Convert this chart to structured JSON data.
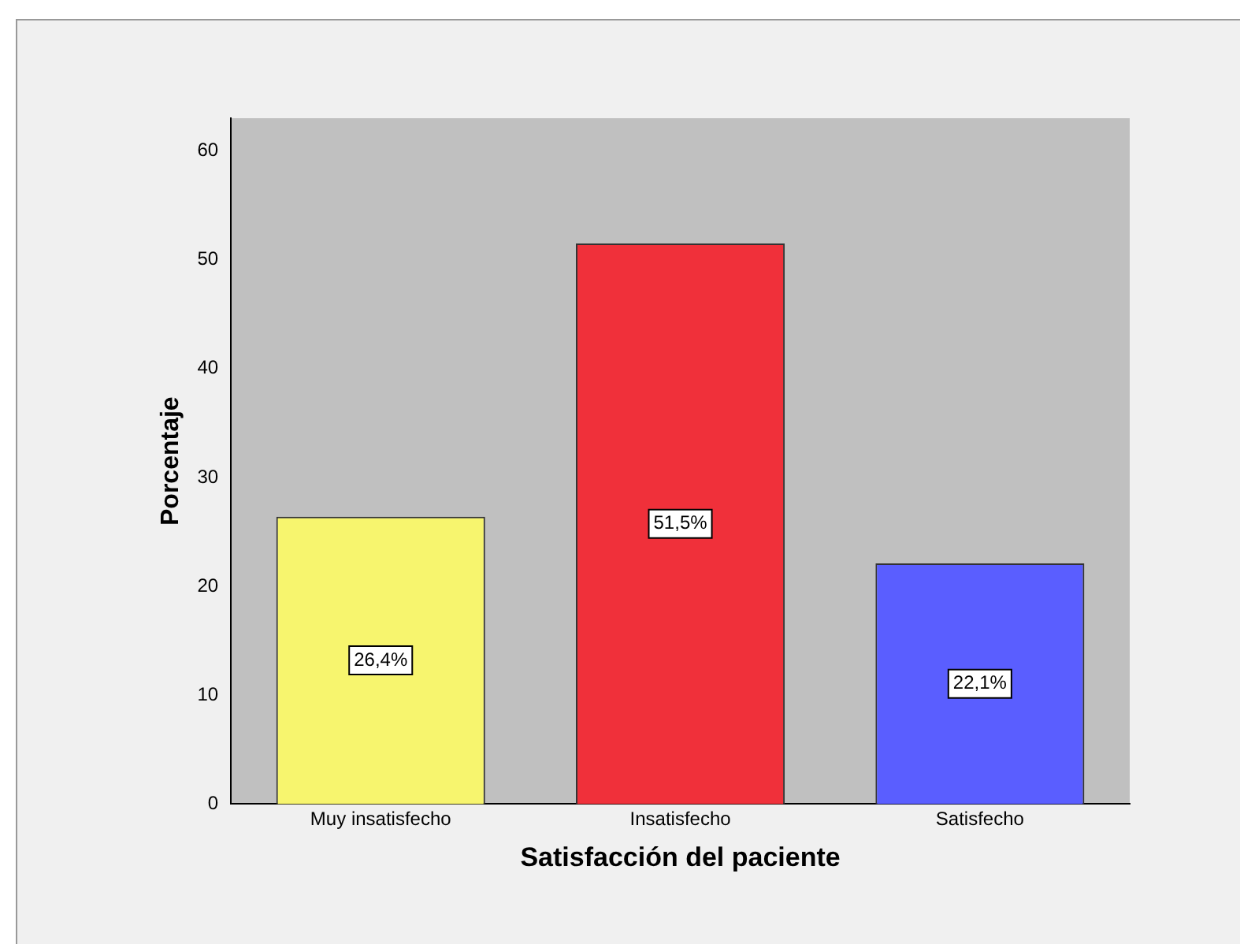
{
  "chart_data": {
    "type": "bar",
    "xlabel": "Satisfacción del paciente",
    "ylabel": "Porcentaje",
    "categories": [
      "Muy insatisfecho",
      "Insatisfecho",
      "Satisfecho"
    ],
    "values": [
      26.4,
      51.5,
      22.1
    ],
    "colors": [
      "#f7f56e",
      "#f0303a",
      "#5a5eff"
    ],
    "value_labels": [
      "26,4%",
      "51,5%",
      "22,1%"
    ],
    "ylim": [
      0,
      63
    ],
    "yticks": [
      0,
      10,
      20,
      30,
      40,
      50,
      60
    ],
    "grid": false,
    "legend": false
  }
}
